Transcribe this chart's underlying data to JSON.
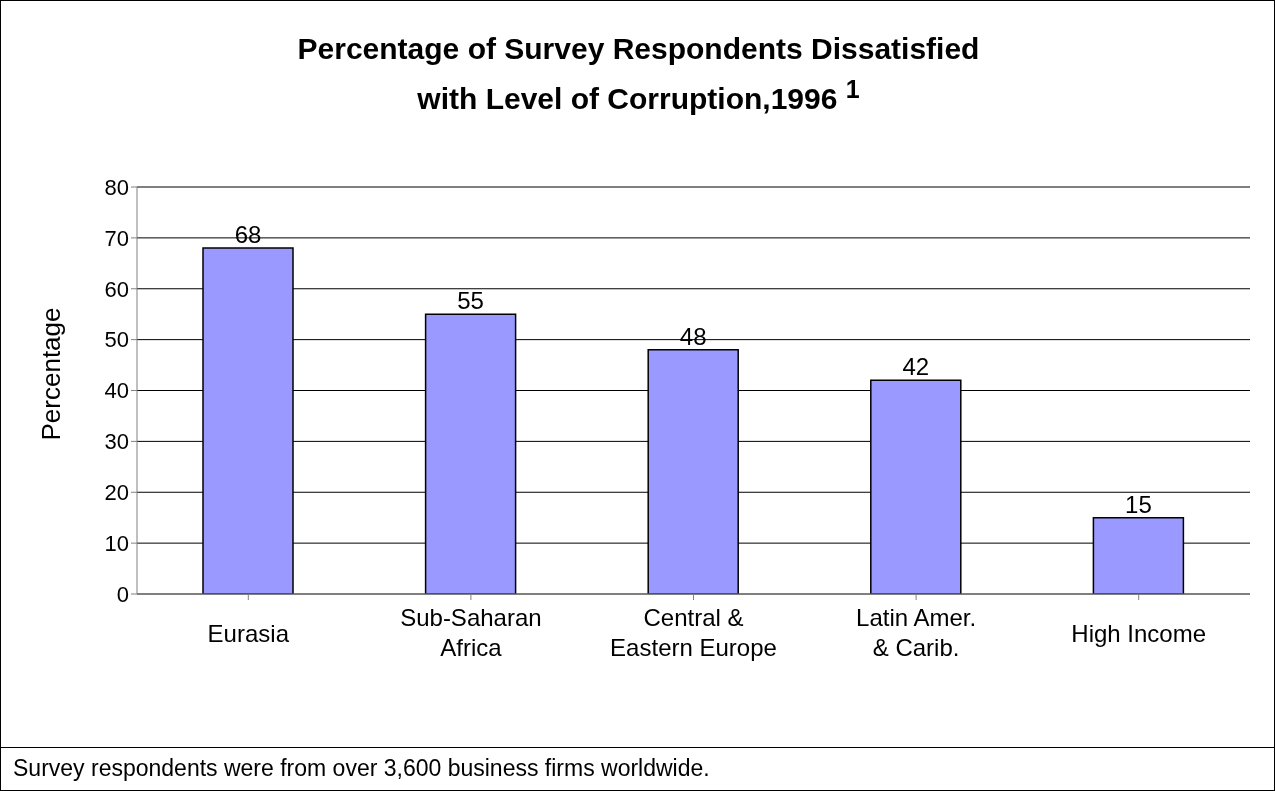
{
  "chart_data": {
    "type": "bar",
    "title": "Percentage of Survey Respondents Dissatisfied\nwith Level of Corruption,1996 $^{1}$",
    "ylabel": "Percentage",
    "categories": [
      "Eurasia",
      "Sub-Saharan\nAfrica",
      "Central &\nEastern Europe",
      "Latin Amer.\n& Carib.",
      "High Income"
    ],
    "values": [
      68,
      55,
      48,
      42,
      15
    ],
    "color": "#9999ff",
    "ylim": [
      0,
      80
    ],
    "yticks": [
      0,
      10,
      20,
      30,
      40,
      50,
      60,
      70,
      80
    ],
    "grid": "y",
    "data_labels": true,
    "annotations": [
      "Survey respondents were from over 3,600 business firms worldwide."
    ]
  }
}
